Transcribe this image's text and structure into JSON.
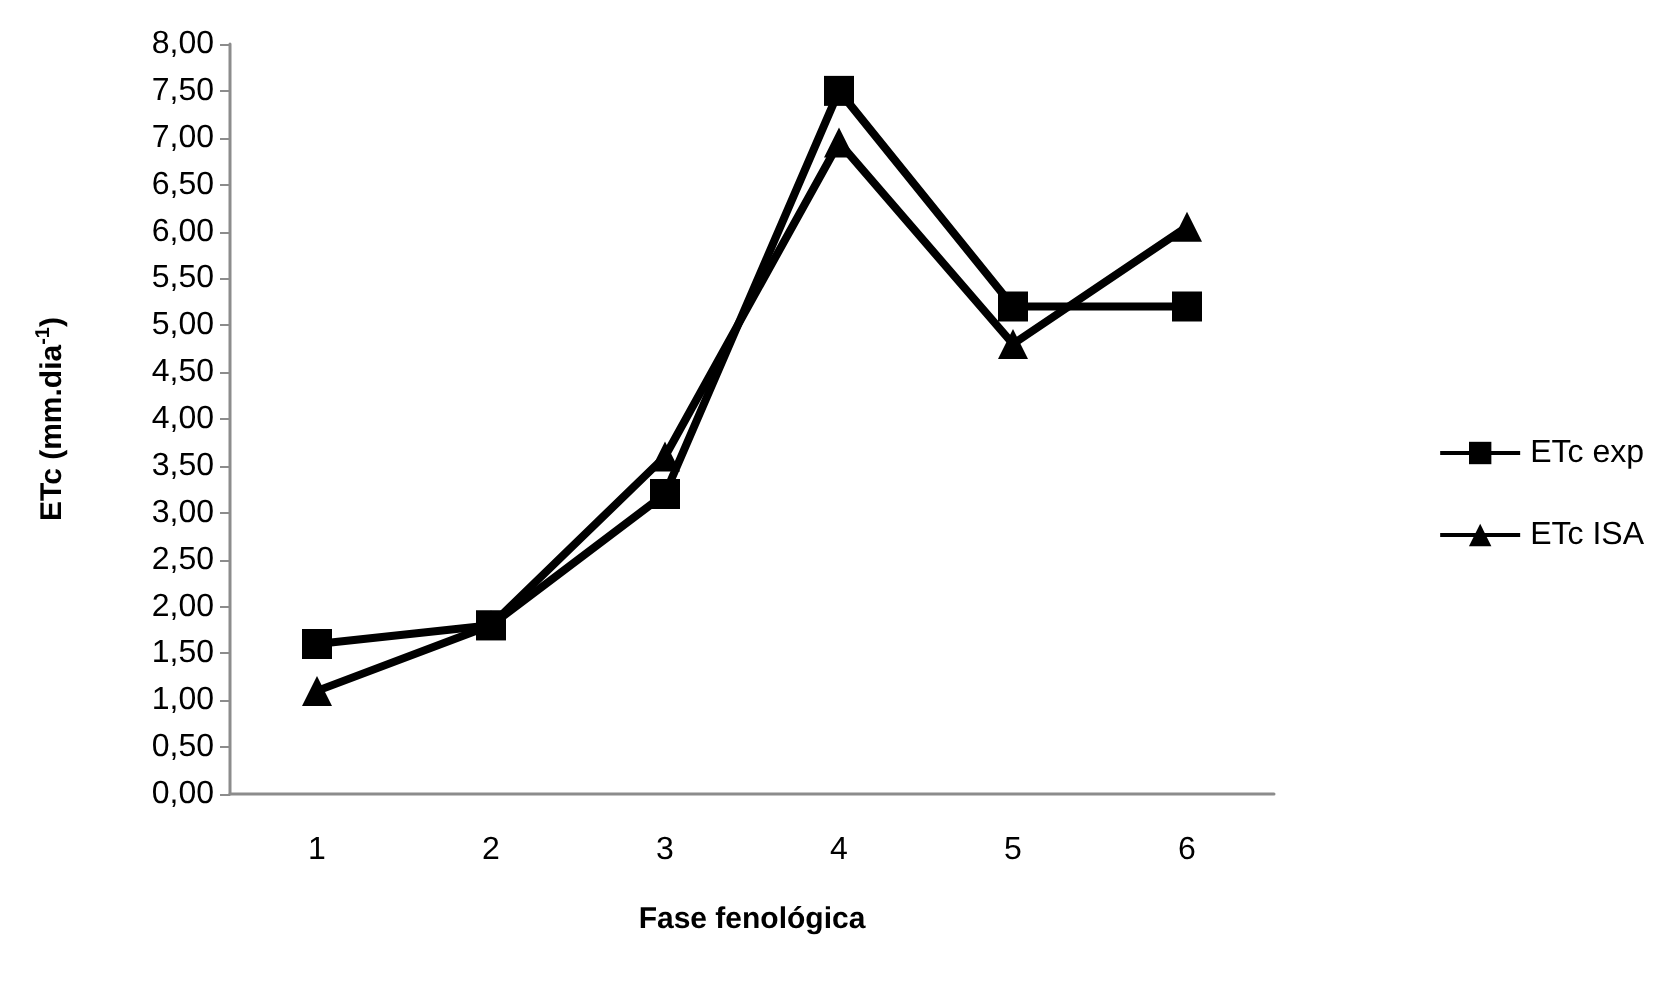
{
  "chart_data": {
    "type": "line",
    "xlabel": "Fase fenológica",
    "ylabel": "ETc (mm.dia$^{-1}$)",
    "categories": [
      "1",
      "2",
      "3",
      "4",
      "5",
      "6"
    ],
    "series": [
      {
        "name": "ETc exp",
        "color": "#000000",
        "marker": "square",
        "values": [
          1.6,
          1.8,
          3.2,
          7.5,
          5.2,
          5.2
        ]
      },
      {
        "name": "ETc ISA",
        "color": "#000000",
        "marker": "triangle",
        "values": [
          1.1,
          1.8,
          3.6,
          6.95,
          4.8,
          6.05
        ]
      }
    ],
    "ylim": [
      0,
      8
    ],
    "yticks": [
      {
        "value": 0,
        "label": "0,00"
      },
      {
        "value": 0.5,
        "label": "0,50"
      },
      {
        "value": 1,
        "label": "1,00"
      },
      {
        "value": 1.5,
        "label": "1,50"
      },
      {
        "value": 2,
        "label": "2,00"
      },
      {
        "value": 2.5,
        "label": "2,50"
      },
      {
        "value": 3,
        "label": "3,00"
      },
      {
        "value": 3.5,
        "label": "3,50"
      },
      {
        "value": 4,
        "label": "4,00"
      },
      {
        "value": 4.5,
        "label": "4,50"
      },
      {
        "value": 5,
        "label": "5,00"
      },
      {
        "value": 5.5,
        "label": "5,50"
      },
      {
        "value": 6,
        "label": "6,00"
      },
      {
        "value": 6.5,
        "label": "6,50"
      },
      {
        "value": 7,
        "label": "7,00"
      },
      {
        "value": 7.5,
        "label": "7,50"
      },
      {
        "value": 8,
        "label": "8,00"
      }
    ],
    "grid": false,
    "legend": "right",
    "line_style": "solid"
  }
}
